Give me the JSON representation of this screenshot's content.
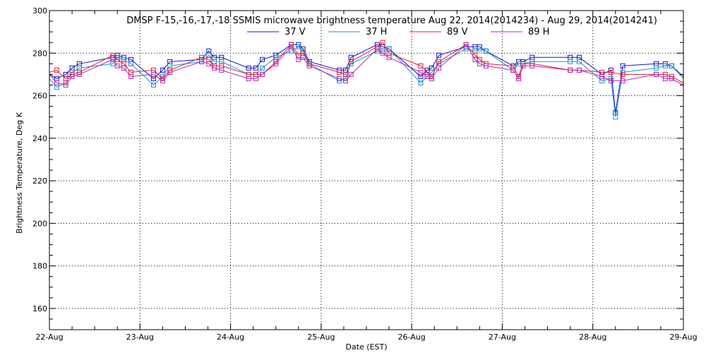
{
  "chart_data": {
    "type": "line",
    "title": "DMSP F-15,-16,-17,-18 SSMIS microwave brightness temperature Aug 22, 2014(2014234) - Aug 29, 2014(2014241)",
    "xlabel": "Date (EST)",
    "ylabel": "Brightness Temperature, Deg K",
    "xlim": [
      0,
      7
    ],
    "ylim": [
      150,
      300
    ],
    "x_tick_labels": [
      "22-Aug",
      "23-Aug",
      "24-Aug",
      "25-Aug",
      "26-Aug",
      "27-Aug",
      "28-Aug",
      "29-Aug"
    ],
    "y_ticks": [
      160,
      180,
      200,
      220,
      240,
      260,
      280,
      300
    ],
    "grid": true,
    "legend_position": "top-center",
    "series": [
      {
        "name": "37 V",
        "color": "#1414c8",
        "points": [
          [
            0,
            270
          ],
          [
            0.08,
            268
          ],
          [
            0.18,
            270
          ],
          [
            0.25,
            273
          ],
          [
            0.33,
            275
          ],
          [
            0.7,
            278
          ],
          [
            0.75,
            279
          ],
          [
            0.82,
            278
          ],
          [
            0.9,
            277
          ],
          [
            1.15,
            268
          ],
          [
            1.25,
            272
          ],
          [
            1.33,
            276
          ],
          [
            1.68,
            277
          ],
          [
            1.76,
            281
          ],
          [
            1.82,
            278
          ],
          [
            1.9,
            278
          ],
          [
            2.2,
            273
          ],
          [
            2.28,
            273
          ],
          [
            2.35,
            277
          ],
          [
            2.5,
            279
          ],
          [
            2.67,
            284
          ],
          [
            2.75,
            284
          ],
          [
            2.8,
            282
          ],
          [
            2.87,
            276
          ],
          [
            3.2,
            272
          ],
          [
            3.27,
            272
          ],
          [
            3.33,
            278
          ],
          [
            3.62,
            284
          ],
          [
            3.68,
            283
          ],
          [
            3.75,
            282
          ],
          [
            4.1,
            269
          ],
          [
            4.17,
            272
          ],
          [
            4.22,
            273
          ],
          [
            4.3,
            279
          ],
          [
            4.6,
            283
          ],
          [
            4.7,
            283
          ],
          [
            4.75,
            283
          ],
          [
            4.82,
            281
          ],
          [
            5.12,
            274
          ],
          [
            5.18,
            276
          ],
          [
            5.23,
            276
          ],
          [
            5.33,
            278
          ],
          [
            5.75,
            278
          ],
          [
            5.85,
            278
          ],
          [
            6.1,
            270
          ],
          [
            6.2,
            272
          ],
          [
            6.25,
            252
          ],
          [
            6.33,
            274
          ],
          [
            6.7,
            275
          ],
          [
            6.8,
            275
          ],
          [
            6.87,
            274
          ],
          [
            7,
            269
          ]
        ]
      },
      {
        "name": "37 H",
        "color": "#1e96c8",
        "points": [
          [
            0,
            268
          ],
          [
            0.08,
            264
          ],
          [
            0.18,
            266
          ],
          [
            0.25,
            271
          ],
          [
            0.33,
            273
          ],
          [
            0.7,
            275
          ],
          [
            0.75,
            278
          ],
          [
            0.82,
            277
          ],
          [
            0.9,
            275
          ],
          [
            1.15,
            265
          ],
          [
            1.25,
            269
          ],
          [
            1.33,
            274
          ],
          [
            1.68,
            276
          ],
          [
            1.76,
            279
          ],
          [
            1.82,
            276
          ],
          [
            1.9,
            276
          ],
          [
            2.2,
            270
          ],
          [
            2.28,
            270
          ],
          [
            2.35,
            273
          ],
          [
            2.5,
            278
          ],
          [
            2.67,
            281
          ],
          [
            2.75,
            283
          ],
          [
            2.8,
            281
          ],
          [
            2.87,
            275
          ],
          [
            3.2,
            267
          ],
          [
            3.27,
            268
          ],
          [
            3.33,
            275
          ],
          [
            3.62,
            281
          ],
          [
            3.68,
            281
          ],
          [
            3.75,
            282
          ],
          [
            4.1,
            266
          ],
          [
            4.17,
            269
          ],
          [
            4.22,
            271
          ],
          [
            4.3,
            275
          ],
          [
            4.6,
            282
          ],
          [
            4.7,
            281
          ],
          [
            4.75,
            282
          ],
          [
            4.82,
            281
          ],
          [
            5.12,
            272
          ],
          [
            5.18,
            275
          ],
          [
            5.23,
            275
          ],
          [
            5.33,
            276
          ],
          [
            5.75,
            276
          ],
          [
            5.85,
            276
          ],
          [
            6.1,
            267
          ],
          [
            6.2,
            268
          ],
          [
            6.25,
            250
          ],
          [
            6.33,
            271
          ],
          [
            6.7,
            273
          ],
          [
            6.8,
            274
          ],
          [
            6.87,
            274
          ],
          [
            7,
            268
          ]
        ]
      },
      {
        "name": "89 V",
        "color": "#dc1e3c",
        "points": [
          [
            0,
            271
          ],
          [
            0.08,
            272
          ],
          [
            0.18,
            268
          ],
          [
            0.25,
            270
          ],
          [
            0.33,
            271
          ],
          [
            0.7,
            279
          ],
          [
            0.75,
            277
          ],
          [
            0.82,
            275
          ],
          [
            0.9,
            271
          ],
          [
            1.15,
            272
          ],
          [
            1.25,
            268
          ],
          [
            1.33,
            272
          ],
          [
            1.68,
            278
          ],
          [
            1.76,
            277
          ],
          [
            1.82,
            274
          ],
          [
            1.9,
            274
          ],
          [
            2.2,
            270
          ],
          [
            2.28,
            270
          ],
          [
            2.35,
            270
          ],
          [
            2.5,
            276
          ],
          [
            2.67,
            284
          ],
          [
            2.75,
            279
          ],
          [
            2.8,
            280
          ],
          [
            2.87,
            275
          ],
          [
            3.2,
            271
          ],
          [
            3.27,
            270
          ],
          [
            3.33,
            276
          ],
          [
            3.62,
            283
          ],
          [
            3.68,
            285
          ],
          [
            3.75,
            280
          ],
          [
            4.1,
            274
          ],
          [
            4.17,
            271
          ],
          [
            4.22,
            269
          ],
          [
            4.3,
            276
          ],
          [
            4.6,
            284
          ],
          [
            4.7,
            279
          ],
          [
            4.75,
            277
          ],
          [
            4.82,
            275
          ],
          [
            5.12,
            274
          ],
          [
            5.18,
            269
          ],
          [
            5.23,
            275
          ],
          [
            5.33,
            275
          ],
          [
            5.75,
            272
          ],
          [
            5.85,
            272
          ],
          [
            6.1,
            271
          ],
          [
            6.2,
            271
          ],
          [
            6.33,
            270
          ],
          [
            6.7,
            270
          ],
          [
            6.8,
            270
          ],
          [
            6.87,
            269
          ],
          [
            7,
            266
          ]
        ]
      },
      {
        "name": "89 H",
        "color": "#b428b4",
        "points": [
          [
            0,
            270
          ],
          [
            0.08,
            266
          ],
          [
            0.18,
            265
          ],
          [
            0.25,
            269
          ],
          [
            0.33,
            270
          ],
          [
            0.7,
            277
          ],
          [
            0.75,
            274
          ],
          [
            0.82,
            273
          ],
          [
            0.9,
            269
          ],
          [
            1.15,
            270
          ],
          [
            1.25,
            267
          ],
          [
            1.33,
            271
          ],
          [
            1.68,
            276
          ],
          [
            1.76,
            275
          ],
          [
            1.82,
            273
          ],
          [
            1.9,
            272
          ],
          [
            2.2,
            268
          ],
          [
            2.28,
            268
          ],
          [
            2.35,
            270
          ],
          [
            2.5,
            275
          ],
          [
            2.67,
            283
          ],
          [
            2.75,
            277
          ],
          [
            2.8,
            278
          ],
          [
            2.87,
            274
          ],
          [
            3.2,
            268
          ],
          [
            3.27,
            267
          ],
          [
            3.33,
            270
          ],
          [
            3.62,
            282
          ],
          [
            3.68,
            280
          ],
          [
            3.75,
            278
          ],
          [
            4.1,
            271
          ],
          [
            4.17,
            269
          ],
          [
            4.22,
            268
          ],
          [
            4.3,
            273
          ],
          [
            4.6,
            284
          ],
          [
            4.7,
            277
          ],
          [
            4.75,
            275
          ],
          [
            4.82,
            274
          ],
          [
            5.12,
            272
          ],
          [
            5.18,
            268
          ],
          [
            5.23,
            274
          ],
          [
            5.33,
            274
          ],
          [
            5.75,
            272
          ],
          [
            5.85,
            272
          ],
          [
            6.1,
            269
          ],
          [
            6.2,
            267
          ],
          [
            6.33,
            267
          ],
          [
            6.7,
            270
          ],
          [
            6.8,
            268
          ],
          [
            6.87,
            268
          ],
          [
            7,
            265
          ]
        ]
      }
    ]
  }
}
